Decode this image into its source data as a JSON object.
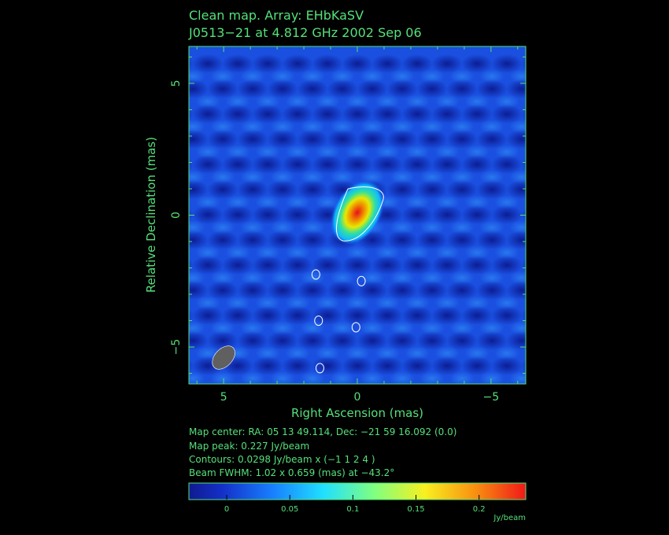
{
  "chart_data": {
    "type": "heatmap",
    "title_line1": "Clean map.  Array: EHbKaSV",
    "title_line2": "J0513−21 at 4.812 GHz 2002 Sep 06",
    "xlabel": "Right Ascension   (mas)",
    "ylabel": "Relative Declination   (mas)",
    "xlim": [
      6.3,
      -6.3
    ],
    "ylim": [
      -6.4,
      6.4
    ],
    "x_ticks": [
      {
        "value": 5,
        "label": "5"
      },
      {
        "value": 0,
        "label": "0"
      },
      {
        "value": -5,
        "label": "−5"
      }
    ],
    "y_ticks": [
      {
        "value": 5,
        "label": "5"
      },
      {
        "value": 0,
        "label": "0"
      },
      {
        "value": -5,
        "label": "−5"
      }
    ],
    "peak": {
      "x": 0.0,
      "y": 0.1,
      "value": 0.227
    },
    "contour_islands": [
      {
        "x": -0.15,
        "y": -2.5
      },
      {
        "x": 1.55,
        "y": -2.25
      },
      {
        "x": 1.45,
        "y": -4.0
      },
      {
        "x": 0.05,
        "y": -4.25
      },
      {
        "x": 1.4,
        "y": -5.8
      }
    ],
    "beam": {
      "x": 5.0,
      "y": -5.4,
      "major_mas": 1.02,
      "minor_mas": 0.659,
      "pa_deg": -43.2,
      "color": "#606060"
    },
    "colorbar": {
      "range": [
        -0.03,
        0.237
      ],
      "ticks": [
        {
          "value": 0,
          "label": "0"
        },
        {
          "value": 0.05,
          "label": "0.05"
        },
        {
          "value": 0.1,
          "label": "0.1"
        },
        {
          "value": 0.15,
          "label": "0.15"
        },
        {
          "value": 0.2,
          "label": "0.2"
        }
      ],
      "unit": "Jy/beam"
    },
    "info_lines": [
      "Map center:  RA: 05 13 49.114,  Dec: −21 59 16.092 (0.0)",
      "Map peak: 0.227 Jy/beam",
      "Contours: 0.0298 Jy/beam x (−1 1 2 4 )",
      "Beam FWHM: 1.02 x 0.659 (mas) at −43.2°"
    ],
    "colors": {
      "text": "#55e07a",
      "frame": "#55e07a",
      "contour": "#ffffff",
      "background": "#000000"
    }
  }
}
